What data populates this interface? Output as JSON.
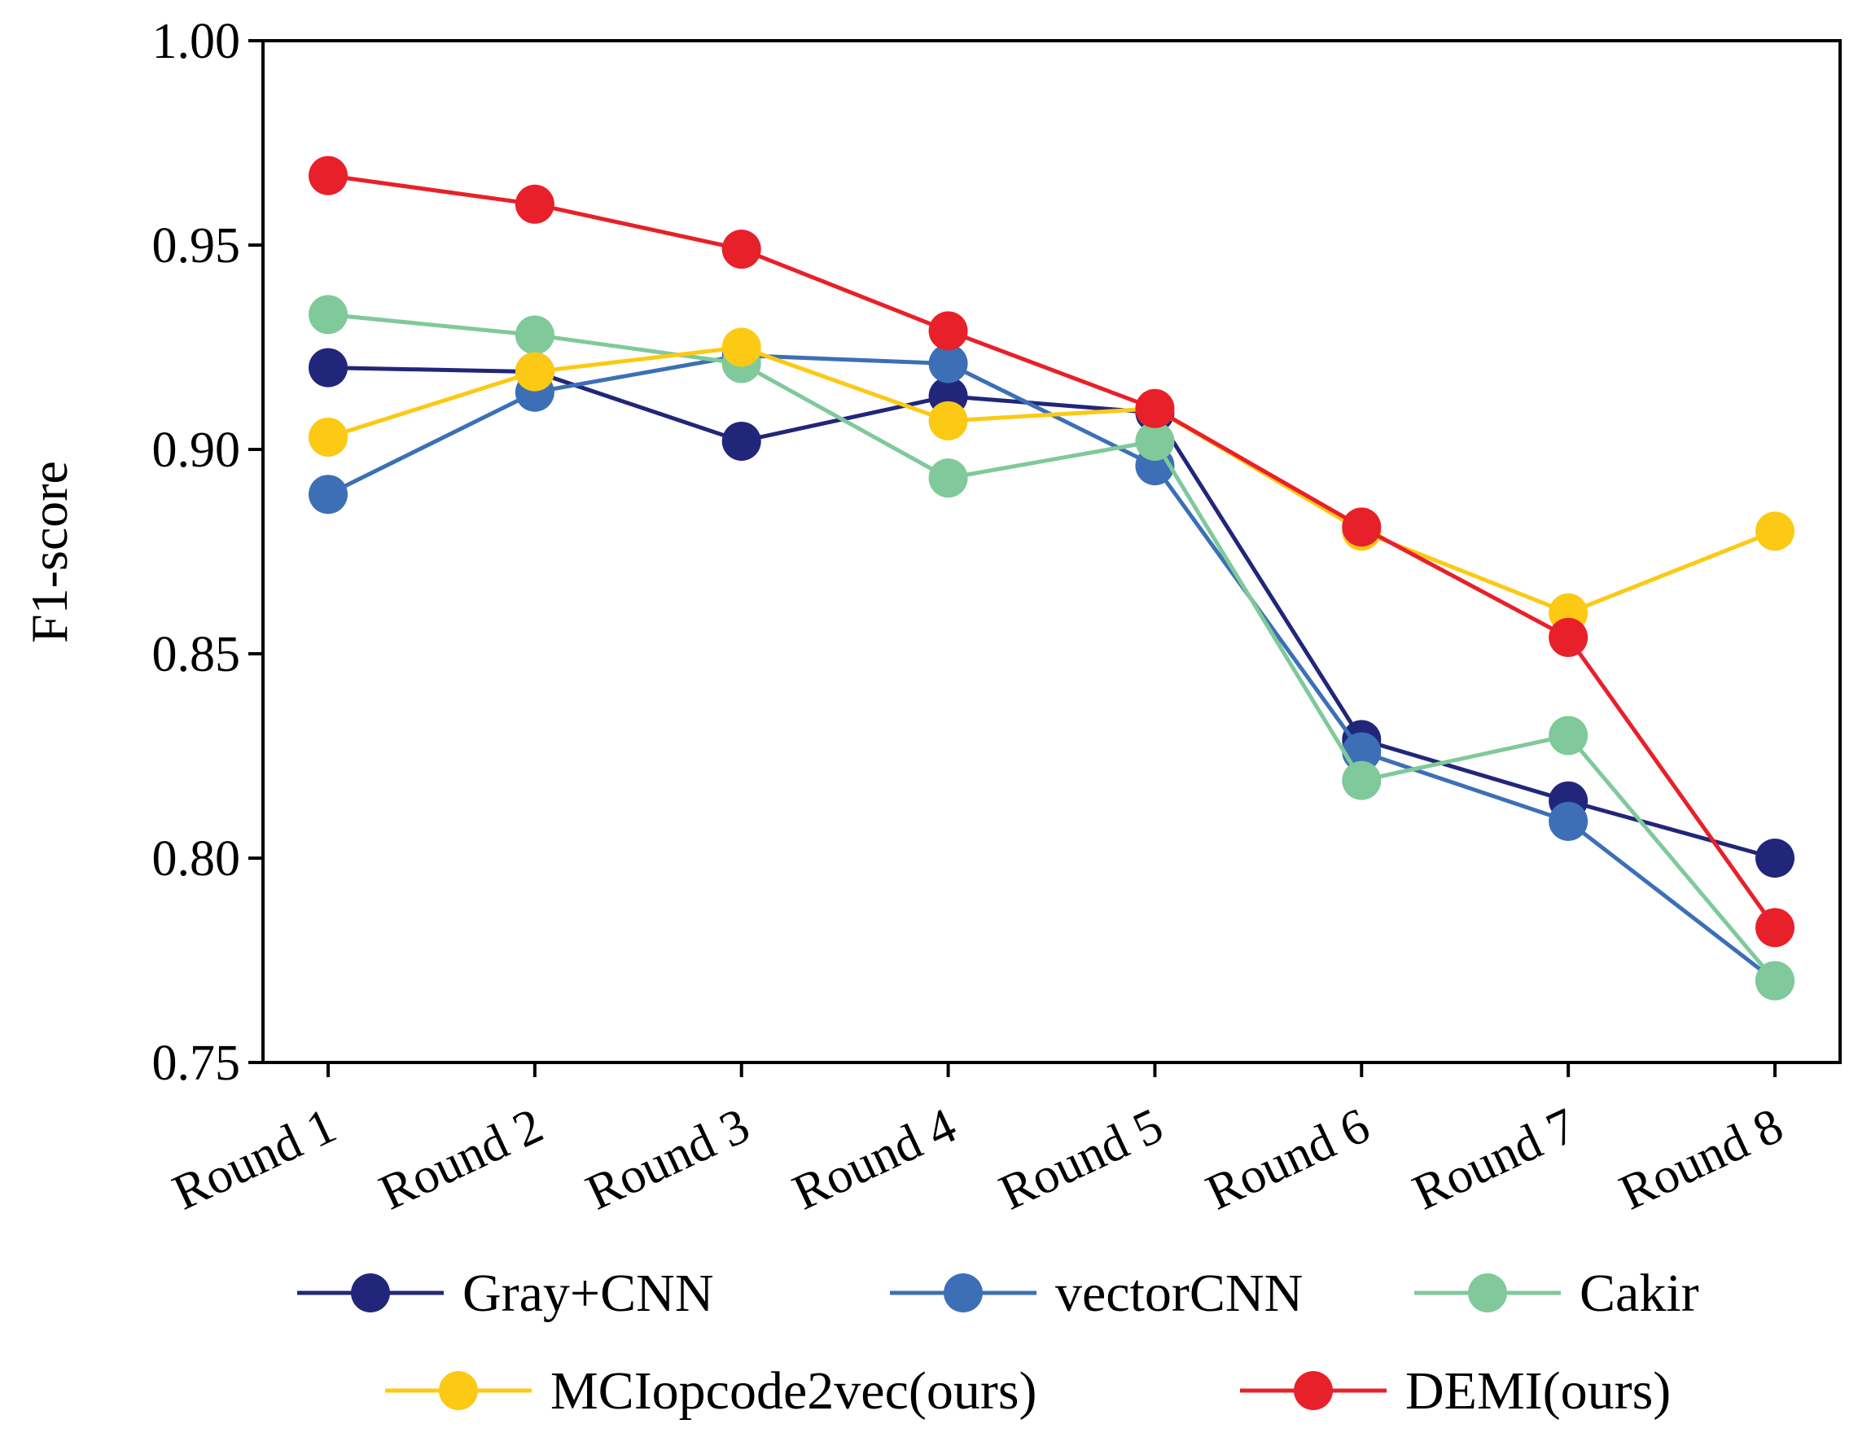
{
  "chart_data": {
    "type": "line",
    "title": "",
    "xlabel": "",
    "ylabel": "F1-score",
    "categories": [
      "Round 1",
      "Round 2",
      "Round 3",
      "Round 4",
      "Round 5",
      "Round 6",
      "Round 7",
      "Round 8"
    ],
    "ylim": [
      0.75,
      1.0
    ],
    "yticks": [
      "0.75",
      "0.80",
      "0.85",
      "0.90",
      "0.95",
      "1.00"
    ],
    "grid": false,
    "legend_position": "bottom",
    "series": [
      {
        "name": "Gray+CNN",
        "color": "#22267a",
        "values": [
          0.92,
          0.919,
          0.902,
          0.913,
          0.909,
          0.829,
          0.814,
          0.8
        ]
      },
      {
        "name": "vectorCNN",
        "color": "#3c6fb6",
        "values": [
          0.889,
          0.914,
          0.923,
          0.921,
          0.896,
          0.826,
          0.809,
          0.77
        ]
      },
      {
        "name": "Cakir",
        "color": "#7fc99a",
        "values": [
          0.933,
          0.928,
          0.921,
          0.893,
          0.902,
          0.819,
          0.83,
          0.77
        ]
      },
      {
        "name": "MCIopcode2vec(ours)",
        "color": "#fcc914",
        "values": [
          0.903,
          0.919,
          0.925,
          0.907,
          0.91,
          0.88,
          0.86,
          0.88
        ]
      },
      {
        "name": "DEMI(ours)",
        "color": "#e8202a",
        "values": [
          0.967,
          0.96,
          0.949,
          0.929,
          0.91,
          0.881,
          0.854,
          0.783
        ]
      }
    ]
  }
}
